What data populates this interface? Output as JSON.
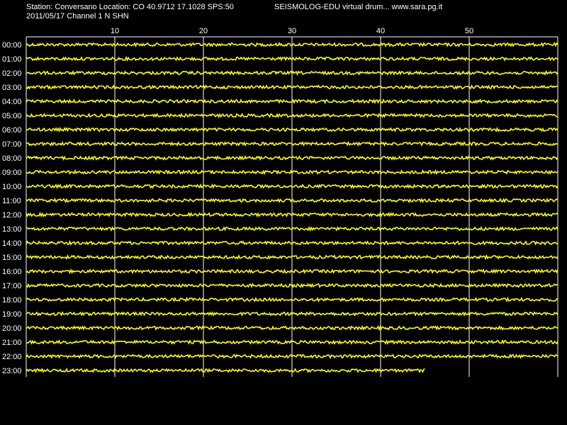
{
  "header": {
    "station_line": "Station: Conversano Location: CO 40.9712 17.1028 SPS:50",
    "date_line": "2011/05/17  Channel 1 N SHN",
    "app_title": "SEISMOLOG-EDU virtual drum... www.sara.pg.it"
  },
  "drum": {
    "minute_ticks": [
      "10",
      "20",
      "30",
      "40",
      "50"
    ],
    "hours": [
      "00:00",
      "01:00",
      "02:00",
      "03:00",
      "04:00",
      "05:00",
      "06:00",
      "07:00",
      "08:00",
      "09:00",
      "10:00",
      "11:00",
      "12:00",
      "13:00",
      "14:00",
      "15:00",
      "16:00",
      "17:00",
      "18:00",
      "19:00",
      "20:00",
      "21:00",
      "22:00",
      "23:00"
    ],
    "last_hour_fraction": 0.75,
    "trace_color": "#ffff00",
    "grid_color": "#ffffff",
    "background": "#000000"
  }
}
